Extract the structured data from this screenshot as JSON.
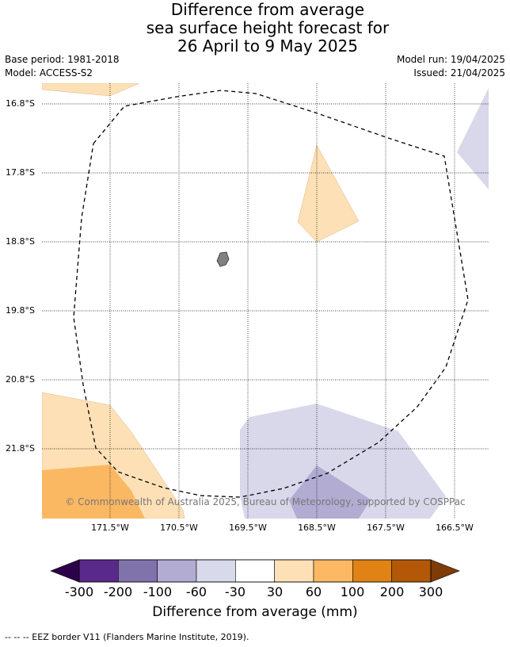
{
  "title": {
    "line1": "Difference from average",
    "line2": "sea surface height forecast for",
    "line3": "26 April to 9 May 2025"
  },
  "meta": {
    "base_period": "Base period: 1981-2018",
    "model": "Model: ACCESS-S2",
    "model_run": "Model run: 19/04/2025",
    "issued": "Issued: 21/04/2025"
  },
  "map": {
    "lat_labels": [
      "16.8°S",
      "17.8°S",
      "18.8°S",
      "19.8°S",
      "20.8°S",
      "21.8°S"
    ],
    "lon_labels": [
      "171.5°W",
      "170.5°W",
      "169.5°W",
      "168.5°W",
      "167.5°W",
      "166.5°W"
    ],
    "copyright": "© Commonwealth of Australia 2025, Bureau of Meteorology, supported by COSPPac",
    "colors": {
      "light_orange": "#fde0b6",
      "mid_orange": "#fbb862",
      "light_purple": "#d8d8ea",
      "mid_purple": "#b2abd2",
      "land": "#808080",
      "grid": "#000000"
    }
  },
  "colorbar": {
    "ticks": [
      "-300",
      "-200",
      "-100",
      "-60",
      "-30",
      "30",
      "60",
      "100",
      "200",
      "300"
    ],
    "colors": [
      "#5a2a8a",
      "#8073ac",
      "#b2abd2",
      "#d8daeb",
      "#ffffff",
      "#fee0b6",
      "#fdb863",
      "#e08214",
      "#b35806"
    ],
    "under_color": "#2d004b",
    "over_color": "#7f3b08",
    "label": "Difference from average (mm)"
  },
  "footnote": "--  --  -- EEZ border V11 (Flanders Marine Institute, 2019)."
}
